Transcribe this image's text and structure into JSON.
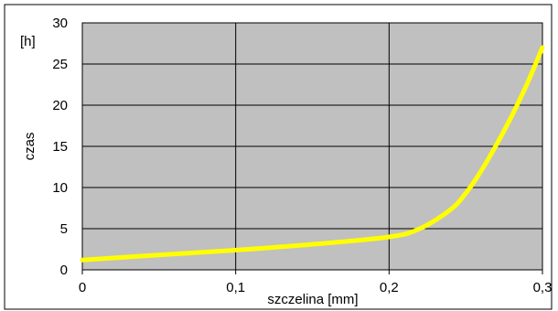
{
  "chart_data": {
    "type": "line",
    "title": "",
    "xlabel": "szczelina [mm]",
    "ylabel": "czas",
    "yunit": "[h]",
    "xlim": [
      0,
      0.3
    ],
    "ylim": [
      0,
      30
    ],
    "xticks": [
      "0",
      "0,1",
      "0,2",
      "0,3"
    ],
    "yticks": [
      "0",
      "5",
      "10",
      "15",
      "20",
      "25",
      "30"
    ],
    "grid": true,
    "legend": "none",
    "plot_bg_color": "#c0c0c0",
    "series": [
      {
        "color": "#ffff00",
        "x": [
          0,
          0.05,
          0.1,
          0.15,
          0.2,
          0.22,
          0.24,
          0.25,
          0.26,
          0.27,
          0.28,
          0.29,
          0.3
        ],
        "y": [
          1.2,
          1.8,
          2.4,
          3.1,
          4.0,
          5.0,
          7.3,
          9.3,
          12.0,
          15.2,
          18.7,
          22.6,
          27.0
        ]
      }
    ]
  }
}
